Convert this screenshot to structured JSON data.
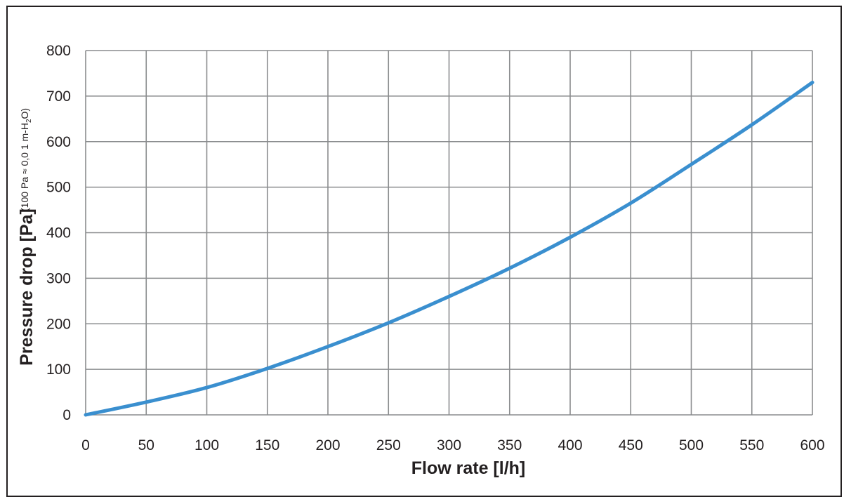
{
  "chart_data": {
    "type": "line",
    "xlabel": "Flow rate [l/h]",
    "ylabel": "Pressure drop [Pa]",
    "ylabel_note_prefix": "(100 Pa ≈ 0,0 1 m-H",
    "ylabel_note_sub": "2",
    "ylabel_note_suffix": "O)",
    "xlim": [
      0,
      600
    ],
    "ylim": [
      0,
      800
    ],
    "x_ticks": [
      0,
      50,
      100,
      150,
      200,
      250,
      300,
      350,
      400,
      450,
      500,
      550,
      600
    ],
    "y_ticks": [
      0,
      100,
      200,
      300,
      400,
      500,
      600,
      700,
      800
    ],
    "grid": true,
    "series": [
      {
        "color": "#3a8fcf",
        "x": [
          0,
          50,
          100,
          150,
          200,
          250,
          300,
          350,
          400,
          450,
          500,
          550,
          600
        ],
        "y": [
          0,
          28,
          60,
          102,
          150,
          202,
          260,
          322,
          390,
          465,
          550,
          637,
          730
        ]
      }
    ]
  },
  "colors": {
    "grid": "#8a8c8e",
    "text": "#231f20",
    "line": "#3a8fcf"
  }
}
